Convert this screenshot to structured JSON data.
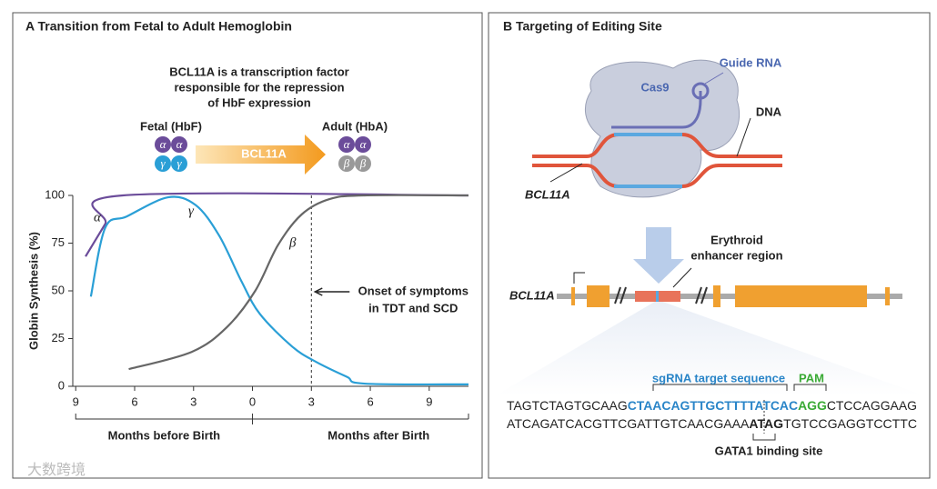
{
  "chart_data": {
    "type": "line",
    "title": "A  Transition from Fetal to Adult Hemoglobin",
    "ylabel": "Globin Synthesis (%)",
    "xlim": [
      -9.15,
      11
    ],
    "ylim": [
      0,
      100
    ],
    "xticks": [
      {
        "value": -9,
        "label": "9"
      },
      {
        "value": -6,
        "label": "6"
      },
      {
        "value": -3,
        "label": "3"
      },
      0,
      3,
      6,
      9
    ],
    "yticks": [
      0,
      25,
      50,
      75,
      100
    ],
    "series": [
      {
        "name": "α",
        "color": "#6b4c9a",
        "x": [
          -8.5,
          -7.5,
          -6.6,
          11
        ],
        "values": [
          68,
          85,
          100,
          100
        ]
      },
      {
        "name": "γ",
        "color": "#2a9fd6",
        "x": [
          -8.23,
          -7.5,
          -6.4,
          -4.3,
          -2.9,
          -1.7,
          -0.56,
          0.37,
          2,
          3.2,
          4.8,
          5.7,
          11
        ],
        "values": [
          47,
          83,
          89,
          99,
          95,
          79,
          55,
          38,
          21,
          13,
          5,
          1.4,
          1
        ]
      },
      {
        "name": "β",
        "color": "#666666",
        "x": [
          -6.3,
          -3.1,
          -1.3,
          0.14,
          1.3,
          2.5,
          3.9,
          5.7,
          11
        ],
        "values": [
          9,
          18,
          31,
          50,
          74,
          90,
          98,
          100,
          100
        ]
      }
    ],
    "annotation": {
      "x": 3,
      "lines": [
        "Onset of symptoms",
        "in TDT and SCD"
      ]
    },
    "x_groups": [
      "Months before Birth",
      "Months after Birth"
    ]
  },
  "panel_a_header": {
    "caption": [
      "BCL11A is a transcription factor",
      "responsible for the repression",
      "of HbF expression"
    ],
    "fetal_label": "Fetal (HbF)",
    "adult_label": "Adult (HbA)",
    "arrow_label": "BCL11A",
    "fetal_chains": [
      "α",
      "α",
      "γ",
      "γ"
    ],
    "adult_chains": [
      "α",
      "α",
      "β",
      "β"
    ]
  },
  "panel_b": {
    "title": "B  Targeting of Editing Site",
    "guide_rna": "Guide RNA",
    "cas9": "Cas9",
    "dna": "DNA",
    "gene_label_top": "BCL11A",
    "enhancer": [
      "Erythroid",
      "enhancer region"
    ],
    "gene_label": "BCL11A",
    "sgrna_label": "sgRNA target sequence",
    "pam_label": "PAM",
    "top_strand": [
      "TAGTCTAGTGCAAG",
      "CTAACAGTTGCTTTTATCAC",
      "AGG",
      "CTCCAGGAAG"
    ],
    "bottom_strand": [
      "ATCAGATCACGTTCGATTGTCAACGAAA",
      "ATAG",
      "TGTCCGAGGTCCTTC"
    ],
    "gata1_label": "GATA1 binding site"
  },
  "watermark": "大数跨境"
}
